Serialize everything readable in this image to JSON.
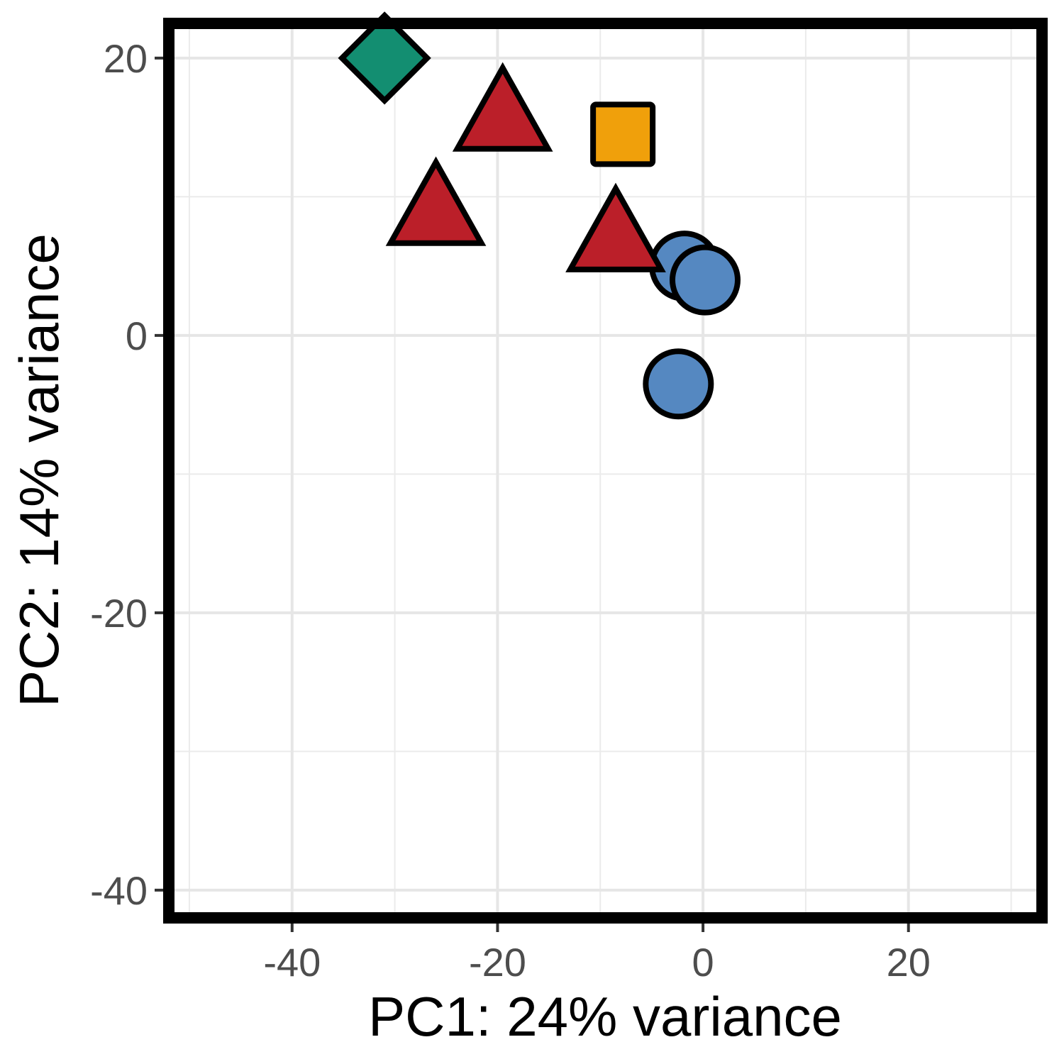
{
  "chart_data": {
    "type": "scatter",
    "xlabel": "PC1: 24% variance",
    "ylabel": "PC2: 14% variance",
    "xlim": [
      -52,
      33
    ],
    "ylim": [
      -42,
      22.5
    ],
    "x_ticks": [
      -40,
      -20,
      0,
      20
    ],
    "y_ticks": [
      -40,
      -20,
      0,
      20
    ],
    "x_tick_labels": [
      "-40",
      "-20",
      "0",
      "20"
    ],
    "y_tick_labels": [
      "-40",
      "-20",
      "0",
      "20"
    ],
    "grid": true,
    "legend": "none",
    "series": [
      {
        "shape": "circle",
        "color": "#5588c1",
        "points": [
          {
            "x": -1.8,
            "y": 5
          },
          {
            "x": 0.2,
            "y": 4
          },
          {
            "x": -2.4,
            "y": -3.5
          }
        ]
      },
      {
        "shape": "triangle",
        "color": "#bb1f29",
        "points": [
          {
            "x": -19.5,
            "y": 15.3
          },
          {
            "x": -26,
            "y": 8.5
          },
          {
            "x": -8.5,
            "y": 6.6
          }
        ]
      },
      {
        "shape": "square",
        "color": "#f0a00b",
        "points": [
          {
            "x": -7.8,
            "y": 14.5
          }
        ]
      },
      {
        "shape": "diamond",
        "color": "#138e71",
        "points": [
          {
            "x": -31,
            "y": 20
          }
        ]
      }
    ]
  }
}
